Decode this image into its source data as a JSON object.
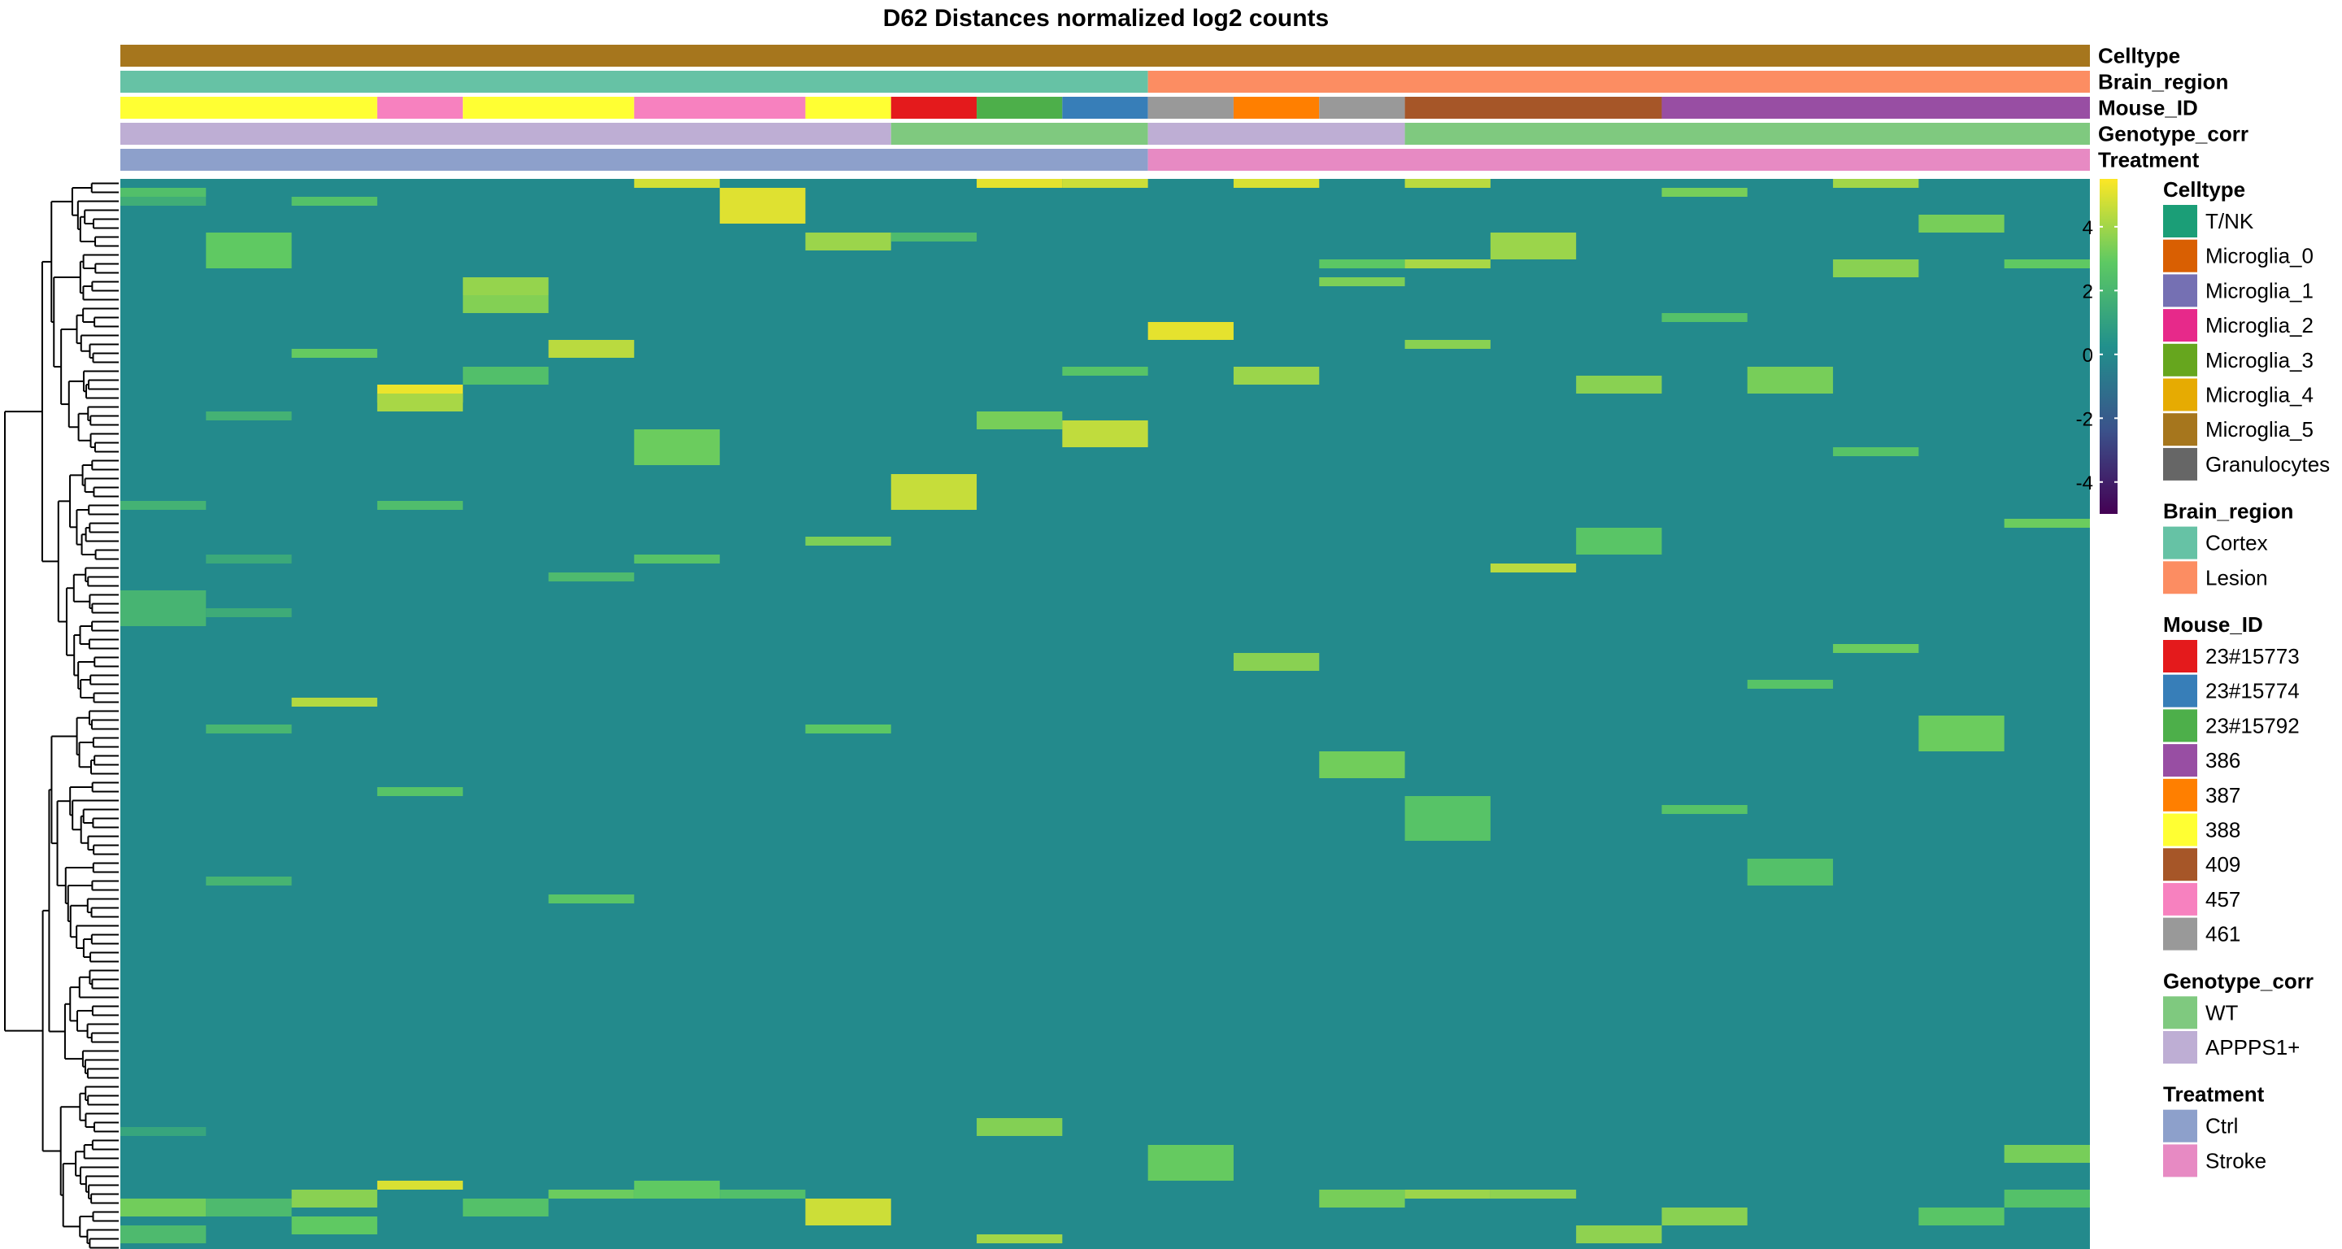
{
  "chart_data": {
    "type": "heatmap",
    "title": "D62 Distances normalized log2 counts",
    "annotation_rows": [
      "Celltype",
      "Brain_region",
      "Mouse_ID",
      "Genotype_corr",
      "Treatment"
    ],
    "columns": [
      {
        "celltype": "Microglia_5",
        "brain_region": "Cortex",
        "mouse_id": "388",
        "genotype": "APPPS1+",
        "treatment": "Ctrl"
      },
      {
        "celltype": "Microglia_5",
        "brain_region": "Cortex",
        "mouse_id": "388",
        "genotype": "APPPS1+",
        "treatment": "Ctrl"
      },
      {
        "celltype": "Microglia_5",
        "brain_region": "Cortex",
        "mouse_id": "388",
        "genotype": "APPPS1+",
        "treatment": "Ctrl"
      },
      {
        "celltype": "Microglia_5",
        "brain_region": "Cortex",
        "mouse_id": "457",
        "genotype": "APPPS1+",
        "treatment": "Ctrl"
      },
      {
        "celltype": "Microglia_5",
        "brain_region": "Cortex",
        "mouse_id": "388",
        "genotype": "APPPS1+",
        "treatment": "Ctrl"
      },
      {
        "celltype": "Microglia_5",
        "brain_region": "Cortex",
        "mouse_id": "388",
        "genotype": "APPPS1+",
        "treatment": "Ctrl"
      },
      {
        "celltype": "Microglia_5",
        "brain_region": "Cortex",
        "mouse_id": "457",
        "genotype": "APPPS1+",
        "treatment": "Ctrl"
      },
      {
        "celltype": "Microglia_5",
        "brain_region": "Cortex",
        "mouse_id": "457",
        "genotype": "APPPS1+",
        "treatment": "Ctrl"
      },
      {
        "celltype": "Microglia_5",
        "brain_region": "Cortex",
        "mouse_id": "388",
        "genotype": "APPPS1+",
        "treatment": "Ctrl"
      },
      {
        "celltype": "Microglia_5",
        "brain_region": "Cortex",
        "mouse_id": "23#15773",
        "genotype": "WT",
        "treatment": "Ctrl"
      },
      {
        "celltype": "Microglia_5",
        "brain_region": "Cortex",
        "mouse_id": "23#15792",
        "genotype": "WT",
        "treatment": "Ctrl"
      },
      {
        "celltype": "Microglia_5",
        "brain_region": "Cortex",
        "mouse_id": "23#15774",
        "genotype": "WT",
        "treatment": "Ctrl"
      },
      {
        "celltype": "Microglia_5",
        "brain_region": "Lesion",
        "mouse_id": "461",
        "genotype": "APPPS1+",
        "treatment": "Stroke"
      },
      {
        "celltype": "Microglia_5",
        "brain_region": "Lesion",
        "mouse_id": "387",
        "genotype": "APPPS1+",
        "treatment": "Stroke"
      },
      {
        "celltype": "Microglia_5",
        "brain_region": "Lesion",
        "mouse_id": "461",
        "genotype": "APPPS1+",
        "treatment": "Stroke"
      },
      {
        "celltype": "Microglia_5",
        "brain_region": "Lesion",
        "mouse_id": "409",
        "genotype": "WT",
        "treatment": "Stroke"
      },
      {
        "celltype": "Microglia_5",
        "brain_region": "Lesion",
        "mouse_id": "409",
        "genotype": "WT",
        "treatment": "Stroke"
      },
      {
        "celltype": "Microglia_5",
        "brain_region": "Lesion",
        "mouse_id": "409",
        "genotype": "WT",
        "treatment": "Stroke"
      },
      {
        "celltype": "Microglia_5",
        "brain_region": "Lesion",
        "mouse_id": "386",
        "genotype": "WT",
        "treatment": "Stroke"
      },
      {
        "celltype": "Microglia_5",
        "brain_region": "Lesion",
        "mouse_id": "386",
        "genotype": "WT",
        "treatment": "Stroke"
      },
      {
        "celltype": "Microglia_5",
        "brain_region": "Lesion",
        "mouse_id": "386",
        "genotype": "WT",
        "treatment": "Stroke"
      },
      {
        "celltype": "Microglia_5",
        "brain_region": "Lesion",
        "mouse_id": "386",
        "genotype": "WT",
        "treatment": "Stroke"
      },
      {
        "celltype": "Microglia_5",
        "brain_region": "Lesion",
        "mouse_id": "386",
        "genotype": "WT",
        "treatment": "Stroke"
      }
    ],
    "n_rows": 120,
    "baseline_value": 0,
    "colorbar": {
      "ticks": [
        4,
        2,
        0,
        -2,
        -4
      ],
      "range": [
        -5,
        5.5
      ],
      "colors": [
        "#440154",
        "#3b528b",
        "#21908c",
        "#5dc963",
        "#fde725"
      ]
    },
    "high_cells": [
      {
        "c": 0,
        "r": [
          1,
          2
        ],
        "v": 2.4
      },
      {
        "c": 0,
        "r": [
          2,
          3
        ],
        "v": 1.6
      },
      {
        "c": 0,
        "r": [
          36,
          37
        ],
        "v": 1.8
      },
      {
        "c": 0,
        "r": [
          46,
          50
        ],
        "v": 1.9
      },
      {
        "c": 0,
        "r": [
          106,
          107
        ],
        "v": 1.2
      },
      {
        "c": 0,
        "r": [
          114,
          116
        ],
        "v": 3.2
      },
      {
        "c": 0,
        "r": [
          117,
          119
        ],
        "v": 2.2
      },
      {
        "c": 1,
        "r": [
          6,
          10
        ],
        "v": 2.9
      },
      {
        "c": 1,
        "r": [
          26,
          27
        ],
        "v": 1.8
      },
      {
        "c": 1,
        "r": [
          42,
          43
        ],
        "v": 1.4
      },
      {
        "c": 1,
        "r": [
          48,
          49
        ],
        "v": 1.5
      },
      {
        "c": 1,
        "r": [
          61,
          62
        ],
        "v": 2.0
      },
      {
        "c": 1,
        "r": [
          78,
          79
        ],
        "v": 1.9
      },
      {
        "c": 1,
        "r": [
          114,
          116
        ],
        "v": 2.2
      },
      {
        "c": 2,
        "r": [
          2,
          3
        ],
        "v": 2.5
      },
      {
        "c": 2,
        "r": [
          19,
          20
        ],
        "v": 3.0
      },
      {
        "c": 2,
        "r": [
          58,
          59
        ],
        "v": 4.3
      },
      {
        "c": 2,
        "r": [
          113,
          115
        ],
        "v": 3.6
      },
      {
        "c": 2,
        "r": [
          116,
          118
        ],
        "v": 2.9
      },
      {
        "c": 3,
        "r": [
          23,
          25
        ],
        "v": 5.2
      },
      {
        "c": 3,
        "r": [
          24,
          26
        ],
        "v": 4.1
      },
      {
        "c": 3,
        "r": [
          36,
          37
        ],
        "v": 2.3
      },
      {
        "c": 3,
        "r": [
          68,
          69
        ],
        "v": 2.6
      },
      {
        "c": 3,
        "r": [
          112,
          113
        ],
        "v": 4.9
      },
      {
        "c": 4,
        "r": [
          11,
          13
        ],
        "v": 3.8
      },
      {
        "c": 4,
        "r": [
          13,
          15
        ],
        "v": 3.5
      },
      {
        "c": 4,
        "r": [
          21,
          23
        ],
        "v": 2.4
      },
      {
        "c": 4,
        "r": [
          114,
          116
        ],
        "v": 2.5
      },
      {
        "c": 5,
        "r": [
          18,
          20
        ],
        "v": 4.4
      },
      {
        "c": 5,
        "r": [
          44,
          45
        ],
        "v": 2.2
      },
      {
        "c": 5,
        "r": [
          80,
          81
        ],
        "v": 2.7
      },
      {
        "c": 5,
        "r": [
          113,
          114
        ],
        "v": 3.1
      },
      {
        "c": 6,
        "r": [
          0,
          1
        ],
        "v": 4.8
      },
      {
        "c": 6,
        "r": [
          28,
          32
        ],
        "v": 3.1
      },
      {
        "c": 6,
        "r": [
          42,
          43
        ],
        "v": 2.6
      },
      {
        "c": 6,
        "r": [
          112,
          114
        ],
        "v": 2.9
      },
      {
        "c": 7,
        "r": [
          1,
          5
        ],
        "v": 5.0
      },
      {
        "c": 7,
        "r": [
          113,
          114
        ],
        "v": 2.4
      },
      {
        "c": 8,
        "r": [
          6,
          8
        ],
        "v": 3.9
      },
      {
        "c": 8,
        "r": [
          40,
          41
        ],
        "v": 3.4
      },
      {
        "c": 8,
        "r": [
          61,
          62
        ],
        "v": 2.8
      },
      {
        "c": 8,
        "r": [
          114,
          117
        ],
        "v": 4.7
      },
      {
        "c": 9,
        "r": [
          33,
          37
        ],
        "v": 4.6
      },
      {
        "c": 9,
        "r": [
          6,
          7
        ],
        "v": 2.2
      },
      {
        "c": 10,
        "r": [
          0,
          1
        ],
        "v": 5.1
      },
      {
        "c": 10,
        "r": [
          26,
          28
        ],
        "v": 3.3
      },
      {
        "c": 10,
        "r": [
          105,
          107
        ],
        "v": 3.5
      },
      {
        "c": 10,
        "r": [
          118,
          119
        ],
        "v": 4.0
      },
      {
        "c": 11,
        "r": [
          0,
          1
        ],
        "v": 4.7
      },
      {
        "c": 11,
        "r": [
          21,
          22
        ],
        "v": 2.6
      },
      {
        "c": 11,
        "r": [
          27,
          30
        ],
        "v": 4.5
      },
      {
        "c": 12,
        "r": [
          16,
          18
        ],
        "v": 5.1
      },
      {
        "c": 12,
        "r": [
          108,
          112
        ],
        "v": 3.0
      },
      {
        "c": 13,
        "r": [
          0,
          1
        ],
        "v": 4.9
      },
      {
        "c": 13,
        "r": [
          21,
          23
        ],
        "v": 3.9
      },
      {
        "c": 13,
        "r": [
          53,
          55
        ],
        "v": 3.6
      },
      {
        "c": 14,
        "r": [
          9,
          10
        ],
        "v": 2.8
      },
      {
        "c": 14,
        "r": [
          11,
          12
        ],
        "v": 3.4
      },
      {
        "c": 14,
        "r": [
          64,
          67
        ],
        "v": 3.2
      },
      {
        "c": 14,
        "r": [
          113,
          115
        ],
        "v": 3.3
      },
      {
        "c": 15,
        "r": [
          0,
          1
        ],
        "v": 4.4
      },
      {
        "c": 15,
        "r": [
          9,
          10
        ],
        "v": 4.1
      },
      {
        "c": 15,
        "r": [
          18,
          19
        ],
        "v": 3.6
      },
      {
        "c": 15,
        "r": [
          69,
          74
        ],
        "v": 2.6
      },
      {
        "c": 15,
        "r": [
          113,
          114
        ],
        "v": 3.9
      },
      {
        "c": 16,
        "r": [
          6,
          9
        ],
        "v": 3.9
      },
      {
        "c": 16,
        "r": [
          43,
          44
        ],
        "v": 4.4
      },
      {
        "c": 16,
        "r": [
          113,
          114
        ],
        "v": 3.7
      },
      {
        "c": 17,
        "r": [
          22,
          24
        ],
        "v": 3.6
      },
      {
        "c": 17,
        "r": [
          39,
          42
        ],
        "v": 2.7
      },
      {
        "c": 17,
        "r": [
          117,
          119
        ],
        "v": 3.7
      },
      {
        "c": 18,
        "r": [
          1,
          2
        ],
        "v": 3.3
      },
      {
        "c": 18,
        "r": [
          15,
          16
        ],
        "v": 2.5
      },
      {
        "c": 18,
        "r": [
          70,
          71
        ],
        "v": 2.6
      },
      {
        "c": 18,
        "r": [
          115,
          117
        ],
        "v": 3.6
      },
      {
        "c": 19,
        "r": [
          21,
          24
        ],
        "v": 3.3
      },
      {
        "c": 19,
        "r": [
          56,
          57
        ],
        "v": 2.6
      },
      {
        "c": 19,
        "r": [
          76,
          79
        ],
        "v": 2.5
      },
      {
        "c": 20,
        "r": [
          0,
          1
        ],
        "v": 4.0
      },
      {
        "c": 20,
        "r": [
          9,
          11
        ],
        "v": 3.6
      },
      {
        "c": 20,
        "r": [
          30,
          31
        ],
        "v": 2.6
      },
      {
        "c": 20,
        "r": [
          52,
          53
        ],
        "v": 3.1
      },
      {
        "c": 21,
        "r": [
          4,
          6
        ],
        "v": 3.3
      },
      {
        "c": 21,
        "r": [
          60,
          64
        ],
        "v": 3.1
      },
      {
        "c": 21,
        "r": [
          115,
          117
        ],
        "v": 2.7
      },
      {
        "c": 22,
        "r": [
          9,
          10
        ],
        "v": 2.9
      },
      {
        "c": 22,
        "r": [
          38,
          39
        ],
        "v": 3.1
      },
      {
        "c": 22,
        "r": [
          108,
          110
        ],
        "v": 3.3
      },
      {
        "c": 22,
        "r": [
          113,
          115
        ],
        "v": 2.5
      }
    ]
  },
  "colors": {
    "Celltype": {
      "T/NK": "#1b9e77",
      "Microglia_0": "#d95f02",
      "Microglia_1": "#7570b3",
      "Microglia_2": "#e7298a",
      "Microglia_3": "#66a61e",
      "Microglia_4": "#e6ab02",
      "Microglia_5": "#a6761d",
      "Granulocytes": "#666666"
    },
    "Brain_region": {
      "Cortex": "#66c2a5",
      "Lesion": "#fc8d62"
    },
    "Mouse_ID": {
      "23#15773": "#e41a1c",
      "23#15774": "#377eb8",
      "23#15792": "#4daf4a",
      "386": "#984ea3",
      "387": "#ff7f00",
      "388": "#ffff33",
      "409": "#a65628",
      "457": "#f781bf",
      "461": "#999999"
    },
    "Genotype_corr": {
      "WT": "#7fc97f",
      "APPPS1+": "#beaed4"
    },
    "Treatment": {
      "Ctrl": "#8da0cb",
      "Stroke": "#e78ac3"
    }
  },
  "legend": [
    {
      "title": "Celltype",
      "items": [
        "T/NK",
        "Microglia_0",
        "Microglia_1",
        "Microglia_2",
        "Microglia_3",
        "Microglia_4",
        "Microglia_5",
        "Granulocytes"
      ]
    },
    {
      "title": "Brain_region",
      "items": [
        "Cortex",
        "Lesion"
      ]
    },
    {
      "title": "Mouse_ID",
      "items": [
        "23#15773",
        "23#15774",
        "23#15792",
        "386",
        "387",
        "388",
        "409",
        "457",
        "461"
      ]
    },
    {
      "title": "Genotype_corr",
      "items": [
        "WT",
        "APPPS1+"
      ]
    },
    {
      "title": "Treatment",
      "items": [
        "Ctrl",
        "Stroke"
      ]
    }
  ]
}
